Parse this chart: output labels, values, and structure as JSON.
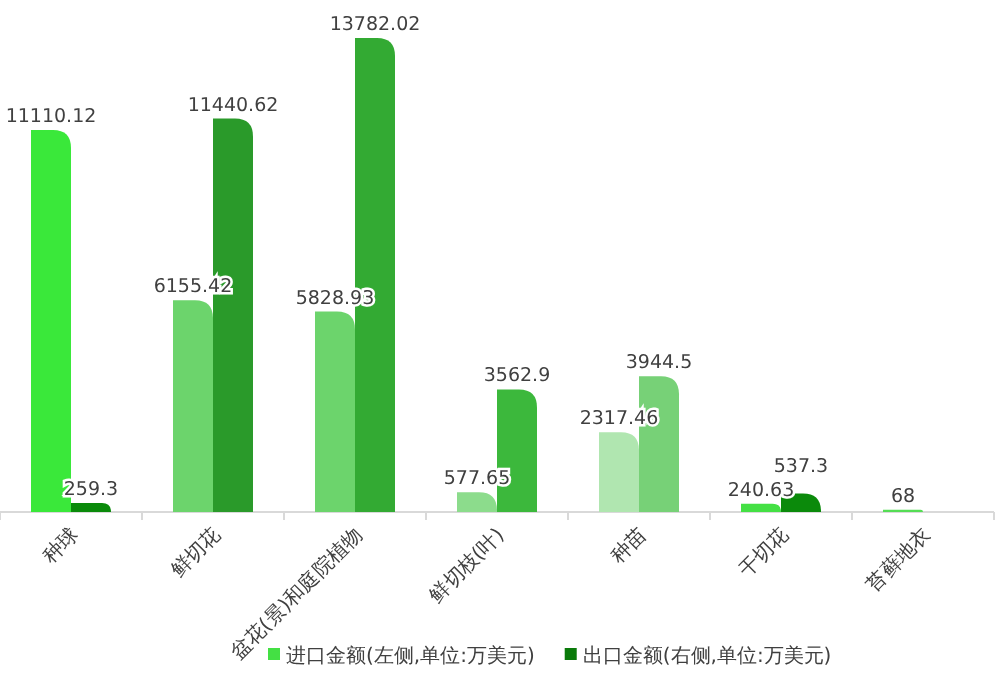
{
  "chart_data": {
    "type": "bar",
    "categories": [
      "种球",
      "鲜切花",
      "盆花(景)和庭院植物",
      "鲜切枝(叶)",
      "种苗",
      "干切花",
      "苔藓地衣"
    ],
    "series": [
      {
        "name": "进口金额(左侧,单位:万美元)",
        "color": "#44e044",
        "values": [
          11110.12,
          6155.42,
          5828.93,
          577.65,
          2317.46,
          240.63,
          68
        ],
        "colors": [
          "#3ae83a",
          "#6cd46c",
          "#6cd46c",
          "#8cdc8c",
          "#b0e6b0",
          "#44e044",
          "#55dd55"
        ]
      },
      {
        "name": "出口金额(右侧,单位:万美元)",
        "color": "#0a7a0a",
        "values": [
          259.3,
          11440.62,
          13782.02,
          3562.9,
          3944.5,
          537.3,
          null
        ],
        "colors": [
          "#0a8a0a",
          "#2a9a2a",
          "#33aa33",
          "#3cb83c",
          "#77d177",
          "#0b8a0b",
          null
        ]
      }
    ],
    "data_labels": true,
    "legend": "bottom right"
  }
}
